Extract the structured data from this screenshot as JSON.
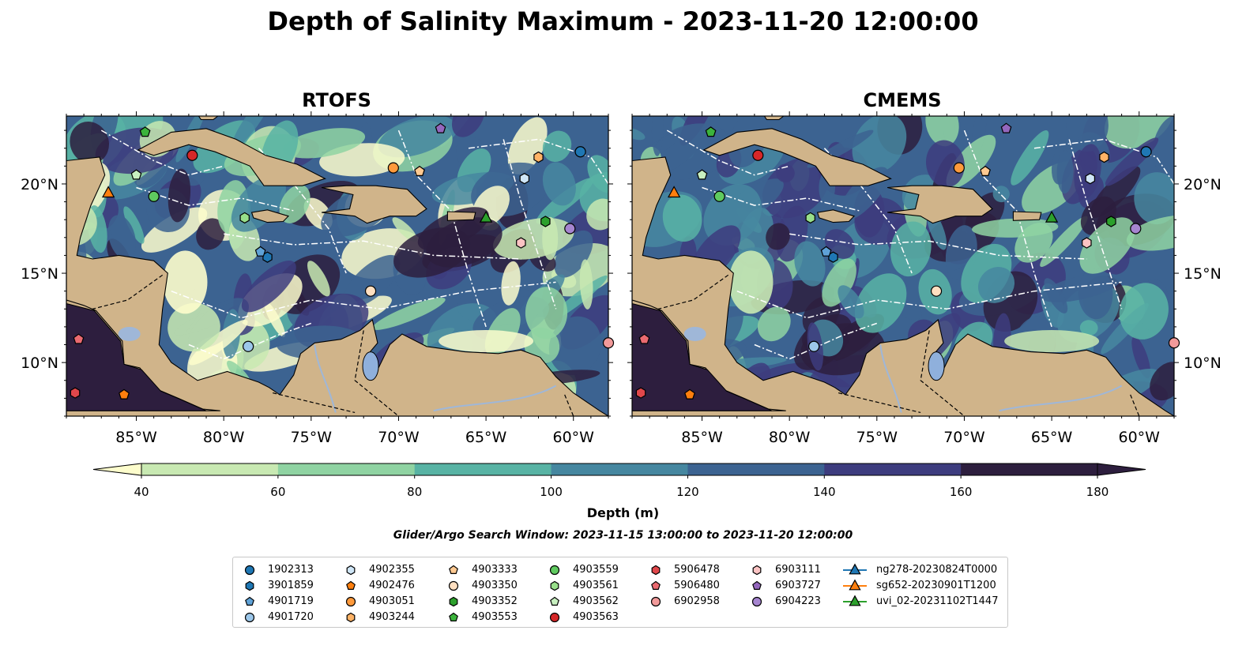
{
  "title": "Depth of Salinity Maximum - 2023-11-20 12:00:00",
  "panels": [
    {
      "title": "RTOFS"
    },
    {
      "title": "CMEMS"
    }
  ],
  "x_ticks": [
    "85°W",
    "80°W",
    "75°W",
    "70°W",
    "65°W",
    "60°W"
  ],
  "y_ticks": [
    "20°N",
    "15°N",
    "10°N"
  ],
  "colorbar": {
    "title": "Depth (m)",
    "ticks": [
      "40",
      "60",
      "80",
      "100",
      "120",
      "140",
      "160",
      "180"
    ],
    "colors": [
      "#fdfdcc",
      "#c8e9b2",
      "#8fd3a2",
      "#58b3a4",
      "#4687a0",
      "#3c6391",
      "#3d3c7e",
      "#2d1e3e"
    ]
  },
  "search_window": "Glider/Argo Search Window: 2023-11-15 13:00:00 to 2023-11-20 12:00:00",
  "legend": [
    {
      "label": "1902313",
      "marker": "circle",
      "color": "#1f77b4"
    },
    {
      "label": "3901859",
      "marker": "hexagon",
      "color": "#1f77b4"
    },
    {
      "label": "4901719",
      "marker": "pentagon",
      "color": "#5fa2d7"
    },
    {
      "label": "4901720",
      "marker": "circle",
      "color": "#9cc7ea"
    },
    {
      "label": "4902355",
      "marker": "hexagon",
      "color": "#cfe6f7"
    },
    {
      "label": "4902476",
      "marker": "pentagon",
      "color": "#ff7f0e"
    },
    {
      "label": "4903051",
      "marker": "circle",
      "color": "#ff9a3c"
    },
    {
      "label": "4903244",
      "marker": "hexagon",
      "color": "#ffb366"
    },
    {
      "label": "4903333",
      "marker": "pentagon",
      "color": "#ffc991"
    },
    {
      "label": "4903350",
      "marker": "circle",
      "color": "#ffdfc0"
    },
    {
      "label": "4903352",
      "marker": "hexagon",
      "color": "#2ca02c"
    },
    {
      "label": "4903553",
      "marker": "pentagon",
      "color": "#3cb33c"
    },
    {
      "label": "4903559",
      "marker": "circle",
      "color": "#5fca5f"
    },
    {
      "label": "4903561",
      "marker": "hexagon",
      "color": "#98df8a"
    },
    {
      "label": "4903562",
      "marker": "pentagon",
      "color": "#c8f0c0"
    },
    {
      "label": "4903563",
      "marker": "circle",
      "color": "#d62728"
    },
    {
      "label": "5906478",
      "marker": "hexagon",
      "color": "#e0474b"
    },
    {
      "label": "5906480",
      "marker": "pentagon",
      "color": "#ea6a70"
    },
    {
      "label": "6902958",
      "marker": "circle",
      "color": "#f29a9a"
    },
    {
      "label": "6903111",
      "marker": "hexagon",
      "color": "#fbc3c3"
    },
    {
      "label": "6903727",
      "marker": "pentagon",
      "color": "#9467bd"
    },
    {
      "label": "6904223",
      "marker": "circle",
      "color": "#a685d0"
    },
    {
      "label": "ng278-20230824T0000",
      "marker": "triangle",
      "color": "#1f77b4",
      "line": true
    },
    {
      "label": "sg652-20230901T1200",
      "marker": "triangle",
      "color": "#ff7f0e",
      "line": true
    },
    {
      "label": "uvi_02-20231102T1447",
      "marker": "triangle",
      "color": "#2ca02c",
      "line": true
    }
  ],
  "map_markers": [
    {
      "id": "1902313",
      "lon": -59.6,
      "lat": 21.8
    },
    {
      "id": "3901859",
      "lon": -77.5,
      "lat": 15.9
    },
    {
      "id": "4901719",
      "lon": -77.9,
      "lat": 16.2
    },
    {
      "id": "4901720",
      "lon": -78.6,
      "lat": 10.9
    },
    {
      "id": "4902355",
      "lon": -62.8,
      "lat": 20.3
    },
    {
      "id": "4902476",
      "lon": -85.7,
      "lat": 8.2
    },
    {
      "id": "4903051",
      "lon": -70.3,
      "lat": 20.9
    },
    {
      "id": "4903244",
      "lon": -62.0,
      "lat": 21.5
    },
    {
      "id": "4903333",
      "lon": -68.8,
      "lat": 20.7
    },
    {
      "id": "4903350",
      "lon": -71.6,
      "lat": 14.0
    },
    {
      "id": "4903352",
      "lon": -61.6,
      "lat": 17.9
    },
    {
      "id": "4903553",
      "lon": -84.5,
      "lat": 22.9
    },
    {
      "id": "4903559",
      "lon": -84.0,
      "lat": 19.3
    },
    {
      "id": "4903561",
      "lon": -78.8,
      "lat": 18.1
    },
    {
      "id": "4903562",
      "lon": -85.0,
      "lat": 20.5
    },
    {
      "id": "4903563",
      "lon": -81.8,
      "lat": 21.6
    },
    {
      "id": "5906478",
      "lon": -88.5,
      "lat": 8.3
    },
    {
      "id": "5906480",
      "lon": -88.3,
      "lat": 11.3
    },
    {
      "id": "6902958",
      "lon": -58.0,
      "lat": 11.1
    },
    {
      "id": "6903111",
      "lon": -63.0,
      "lat": 16.7
    },
    {
      "id": "6903727",
      "lon": -67.6,
      "lat": 23.1
    },
    {
      "id": "6904223",
      "lon": -60.2,
      "lat": 17.5
    },
    {
      "id": "sg652-20230901T1200",
      "lon": -86.6,
      "lat": 19.5
    },
    {
      "id": "uvi_02-20231102T1447",
      "lon": -65.0,
      "lat": 18.1
    }
  ]
}
